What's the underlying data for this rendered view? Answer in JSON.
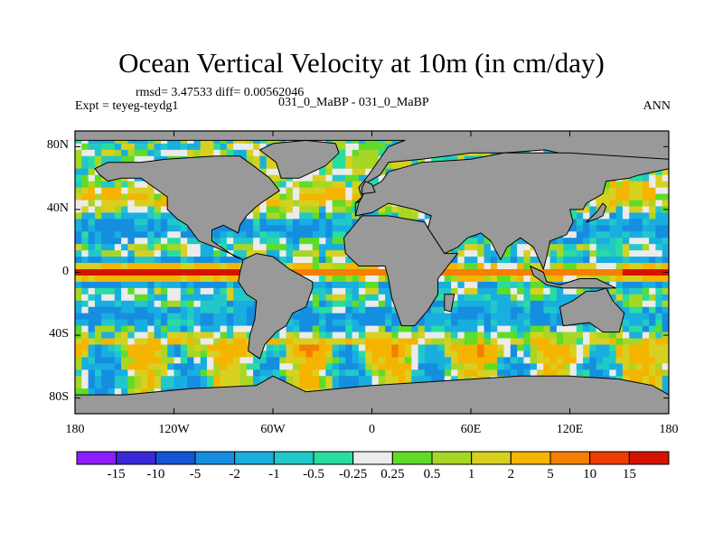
{
  "chart_data": {
    "type": "heatmap",
    "title": "Ocean Vertical Velocity at 10m (in cm/day)",
    "stats_text": "rmsd= 3.47533 diff= 0.00562046",
    "left_label": "Expt = teyeg-teydg1",
    "center_label": "031_0_MaBP - 031_0_MaBP",
    "right_label": "ANN",
    "lat_ticks": [
      "80N",
      "40N",
      "0",
      "40S",
      "80S"
    ],
    "lat_values": [
      80,
      40,
      0,
      -40,
      -80
    ],
    "lon_ticks": [
      "180",
      "120W",
      "60W",
      "0",
      "60E",
      "120E",
      "180"
    ],
    "lon_values": [
      -180,
      -120,
      -60,
      0,
      60,
      120,
      180
    ],
    "ylim": [
      -90,
      90
    ],
    "xlim": [
      -180,
      180
    ],
    "colorbar": {
      "levels": [
        "-15",
        "-10",
        "-5",
        "-2",
        "-1",
        "-0.5",
        "-0.25",
        "0.25",
        "0.5",
        "1",
        "2",
        "5",
        "10",
        "15"
      ],
      "colors": [
        "#8c1eff",
        "#3b28d8",
        "#1455d4",
        "#168ee0",
        "#19aee0",
        "#22c8c8",
        "#29dda0",
        "#ebebeb",
        "#5fdc28",
        "#a8d624",
        "#d8d020",
        "#f5b400",
        "#f47f00",
        "#ee3b00",
        "#d41200"
      ]
    },
    "land_color": "#999999"
  }
}
